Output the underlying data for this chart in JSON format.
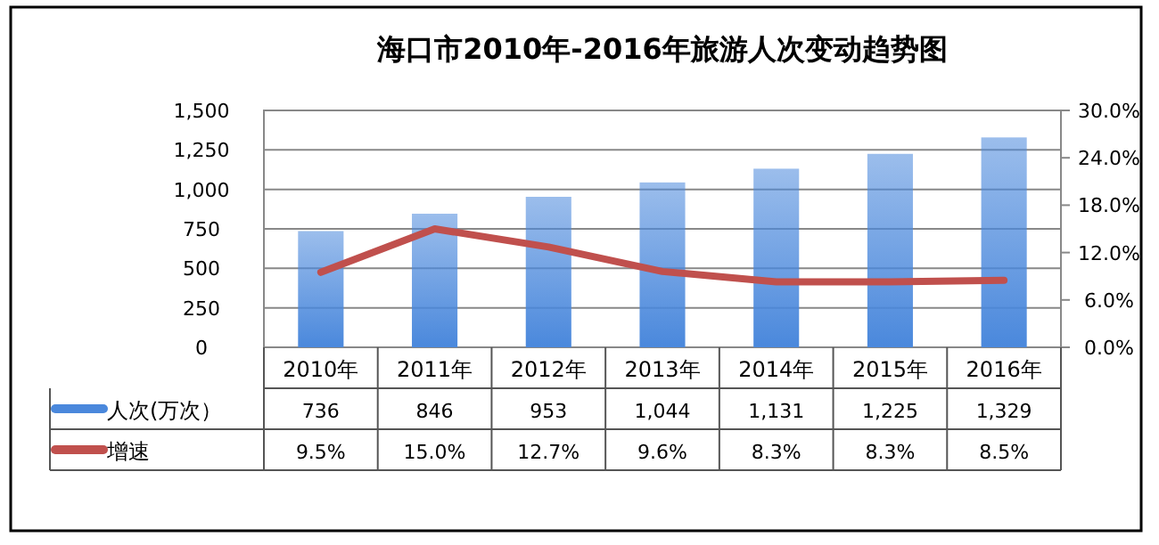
{
  "chart_data": {
    "type": "bar",
    "title": "海口市2010年-2016年旅游人次变动趋势图",
    "categories": [
      "2010年",
      "2011年",
      "2012年",
      "2013年",
      "2014年",
      "2015年",
      "2016年"
    ],
    "series": [
      {
        "name": "人次(万次）",
        "color": "#4a88dc",
        "values": [
          736,
          846,
          953,
          1044,
          1131,
          1225,
          1329
        ],
        "value_labels": [
          "736",
          "846",
          "953",
          "1,044",
          "1,131",
          "1,225",
          "1,329"
        ]
      },
      {
        "name": "增速",
        "type": "line",
        "axis": "y2",
        "color": "#c0504d",
        "values": [
          9.5,
          15.0,
          12.7,
          9.6,
          8.3,
          8.3,
          8.5
        ],
        "value_labels": [
          "9.5%",
          "15.0%",
          "12.7%",
          "9.6%",
          "8.3%",
          "8.3%",
          "8.5%"
        ]
      }
    ],
    "ylim": [
      0,
      1500
    ],
    "yticks": [
      0,
      {
        "value": 250,
        "label": "250"
      },
      {
        "value": 500,
        "label": "500"
      },
      {
        "value": 750,
        "label": "750"
      },
      {
        "value": 1000,
        "label": "1,000"
      },
      {
        "value": 1250,
        "label": "1,250"
      },
      {
        "value": 1500,
        "label": "1,500"
      }
    ],
    "y2lim": [
      0,
      30
    ],
    "y2ticks": [
      {
        "value": 0,
        "label": "0.0%"
      },
      {
        "value": 6,
        "label": "6.0%"
      },
      {
        "value": 12,
        "label": "12.0%"
      },
      {
        "value": 18,
        "label": "18.0%"
      },
      {
        "value": 24,
        "label": "24.0%"
      },
      {
        "value": 30,
        "label": "30.0%"
      }
    ],
    "grid": "y",
    "legend": "bottom"
  }
}
